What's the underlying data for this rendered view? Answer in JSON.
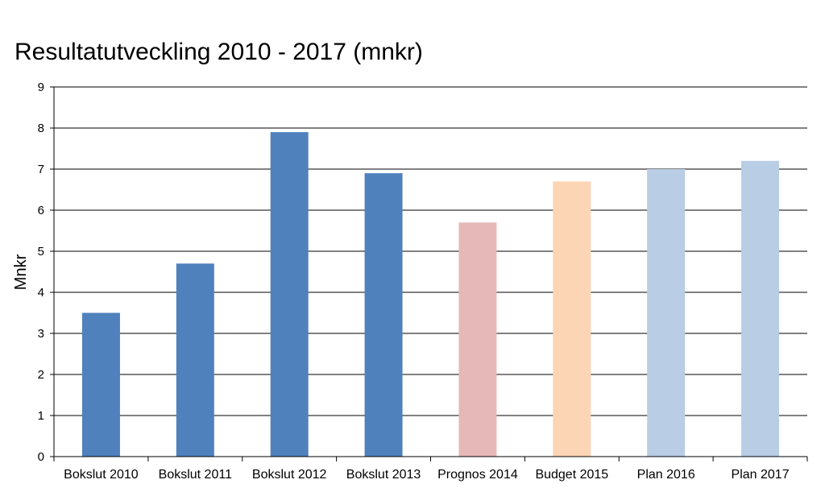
{
  "chart_data": {
    "type": "bar",
    "title": "Resultatutveckling 2010 - 2017 (mnkr)",
    "xlabel": "",
    "ylabel": "Mnkr",
    "ylim": [
      0,
      9
    ],
    "yticks": [
      0,
      1,
      2,
      3,
      4,
      5,
      6,
      7,
      8,
      9
    ],
    "grid": true,
    "categories": [
      "Bokslut 2010",
      "Bokslut 2011",
      "Bokslut 2012",
      "Bokslut 2013",
      "Prognos 2014",
      "Budget 2015",
      "Plan 2016",
      "Plan 2017"
    ],
    "values": [
      3.5,
      4.7,
      7.9,
      6.9,
      5.7,
      6.7,
      7.0,
      7.2
    ],
    "colors": [
      "#4f81bd",
      "#4f81bd",
      "#4f81bd",
      "#4f81bd",
      "#e6b9b8",
      "#fcd5b5",
      "#b9cde5",
      "#b9cde5"
    ]
  }
}
